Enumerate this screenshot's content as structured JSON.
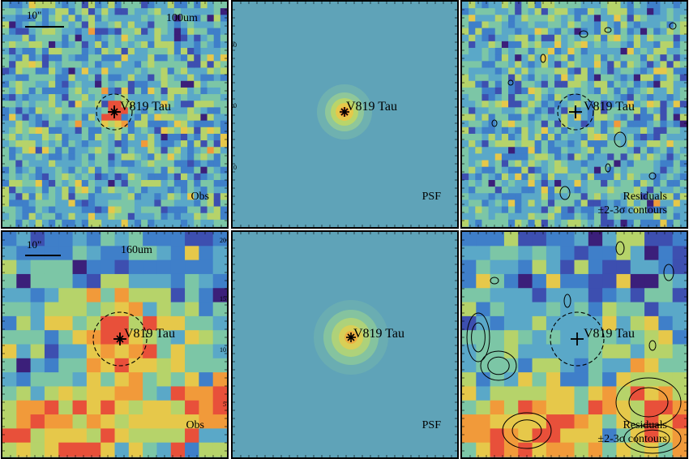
{
  "rows": [
    {
      "band": "100um",
      "scale_label": "10\"",
      "source_label": "V819 Tau",
      "panels": [
        {
          "kind": "observed",
          "corner_lines": [
            "Obs"
          ]
        },
        {
          "kind": "psf",
          "corner_lines": [
            "PSF"
          ]
        },
        {
          "kind": "residual",
          "corner_lines": [
            "Residuals",
            "±2-3σ contours"
          ]
        }
      ],
      "side_ticks": [
        "30",
        "20",
        "10"
      ]
    },
    {
      "band": "160um",
      "scale_label": "10\"",
      "source_label": "V819 Tau",
      "panels": [
        {
          "kind": "observed",
          "corner_lines": [
            "Obs"
          ]
        },
        {
          "kind": "psf",
          "corner_lines": [
            "PSF"
          ]
        },
        {
          "kind": "residual",
          "corner_lines": [
            "Residuals",
            "±2-3σ contours"
          ]
        }
      ],
      "side_ticks": [
        "20",
        "15",
        "10",
        "5"
      ]
    }
  ],
  "colormap": [
    "#3b1f7a",
    "#3d4fb0",
    "#3f7fc9",
    "#5aa8c8",
    "#7cc6a6",
    "#b6d36a",
    "#e6c84a",
    "#f19a3a",
    "#e8503a"
  ]
}
